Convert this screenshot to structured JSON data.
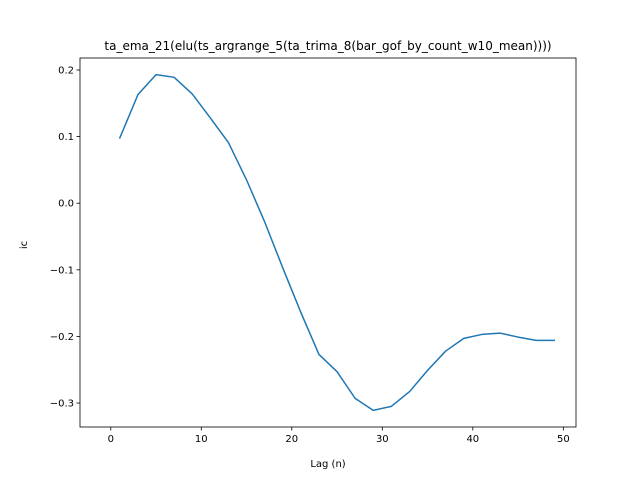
{
  "chart_data": {
    "type": "line",
    "title": "ta_ema_21(elu(ts_argrange_5(ta_trima_8(bar_gof_by_count_w10_mean))))",
    "xlabel": "Lag (n)",
    "ylabel": "ic",
    "xlim": [
      -3.4,
      51.4
    ],
    "ylim": [
      -0.336,
      0.218
    ],
    "x_ticks": [
      0,
      10,
      20,
      30,
      40,
      50
    ],
    "x_tick_labels": [
      "0",
      "10",
      "20",
      "30",
      "40",
      "50"
    ],
    "y_ticks": [
      -0.3,
      -0.2,
      -0.1,
      0.0,
      0.1,
      0.2
    ],
    "y_tick_labels": [
      "−0.3",
      "−0.2",
      "−0.1",
      "0.0",
      "0.1",
      "0.2"
    ],
    "grid": false,
    "series": [
      {
        "color": "#1f77b4",
        "x": [
          1,
          3,
          5,
          7,
          9,
          11,
          13,
          15,
          17,
          19,
          21,
          23,
          25,
          27,
          29,
          31,
          33,
          35,
          37,
          39,
          41,
          43,
          45,
          47,
          49
        ],
        "y": [
          0.098,
          0.163,
          0.193,
          0.189,
          0.164,
          0.128,
          0.091,
          0.035,
          -0.028,
          -0.097,
          -0.164,
          -0.227,
          -0.253,
          -0.293,
          -0.311,
          -0.305,
          -0.283,
          -0.251,
          -0.222,
          -0.203,
          -0.197,
          -0.195,
          -0.201,
          -0.206,
          -0.206
        ]
      }
    ]
  }
}
